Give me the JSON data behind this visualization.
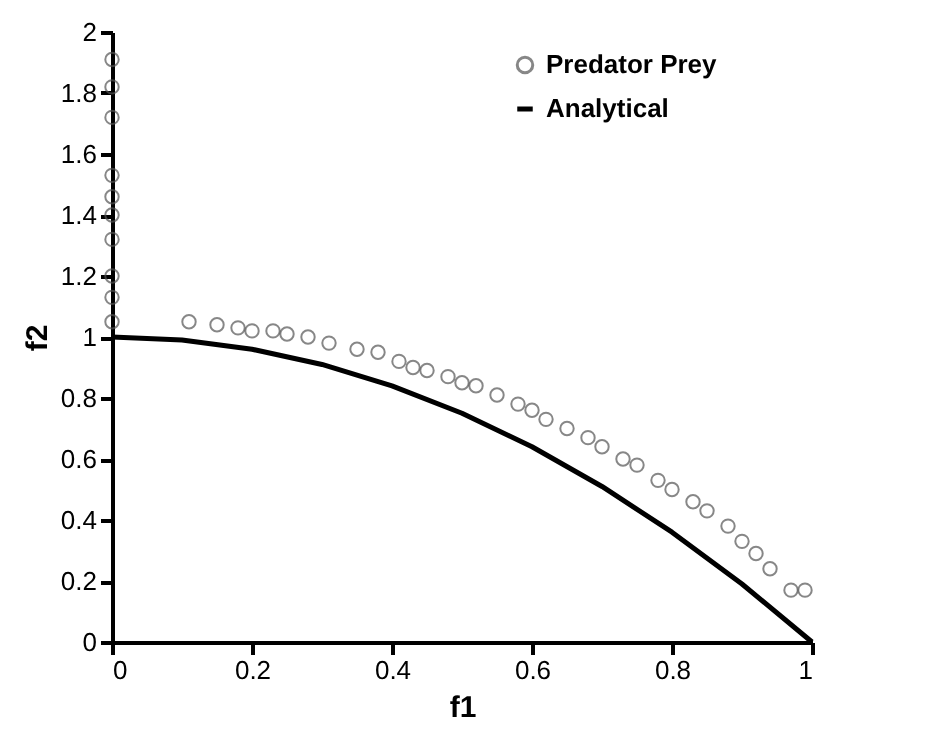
{
  "chart_data": {
    "type": "scatter",
    "xlabel": "f1",
    "ylabel": "f2",
    "xlim": [
      0,
      1
    ],
    "ylim": [
      0,
      2
    ],
    "xticks": [
      0,
      0.2,
      0.4,
      0.6,
      0.8,
      1
    ],
    "yticks": [
      0,
      0.2,
      0.4,
      0.6,
      0.8,
      1,
      1.2,
      1.4,
      1.6,
      1.8,
      2
    ],
    "grid": false,
    "legend": "top right",
    "series": [
      {
        "name": "Predator Prey",
        "color": "#555555",
        "marker": "circle",
        "x": [
          0,
          0,
          0,
          0,
          0,
          0,
          0,
          0,
          0,
          0,
          0.11,
          0.15,
          0.18,
          0.2,
          0.23,
          0.25,
          0.28,
          0.31,
          0.35,
          0.38,
          0.41,
          0.43,
          0.45,
          0.48,
          0.5,
          0.52,
          0.55,
          0.58,
          0.6,
          0.62,
          0.65,
          0.68,
          0.7,
          0.73,
          0.75,
          0.78,
          0.8,
          0.83,
          0.85,
          0.88,
          0.9,
          0.92,
          0.94,
          0.97,
          0.99
        ],
        "values": [
          1.91,
          1.82,
          1.72,
          1.53,
          1.46,
          1.4,
          1.32,
          1.2,
          1.13,
          1.05,
          1.05,
          1.04,
          1.03,
          1.02,
          1.02,
          1.01,
          1.0,
          0.98,
          0.96,
          0.95,
          0.92,
          0.9,
          0.89,
          0.87,
          0.85,
          0.84,
          0.81,
          0.78,
          0.76,
          0.73,
          0.7,
          0.67,
          0.64,
          0.6,
          0.58,
          0.53,
          0.5,
          0.46,
          0.43,
          0.38,
          0.33,
          0.29,
          0.24,
          0.17,
          0.17
        ]
      },
      {
        "name": "Analytical",
        "type": "line",
        "color": "#000000",
        "line_style": "solid",
        "x": [
          0,
          0.1,
          0.2,
          0.3,
          0.4,
          0.5,
          0.6,
          0.7,
          0.8,
          0.9,
          1
        ],
        "values": [
          1,
          0.99,
          0.96,
          0.91,
          0.84,
          0.75,
          0.64,
          0.51,
          0.36,
          0.19,
          0
        ]
      }
    ]
  }
}
